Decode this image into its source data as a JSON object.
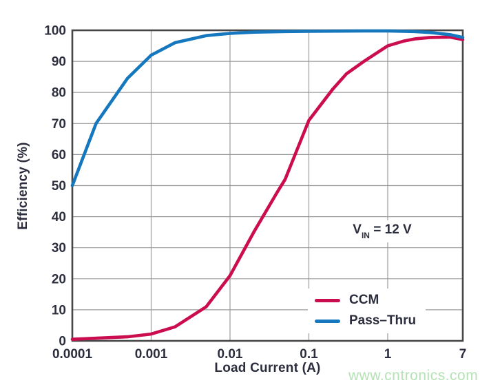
{
  "figure": {
    "xlabel": "Load Current (A)",
    "ylabel": "Efficiency (%)",
    "annotation": {
      "prefix": "V",
      "subscript": "IN",
      "rest": " = 12 V"
    },
    "legend": [
      {
        "label": "CCM",
        "color": "#CB0D4F"
      },
      {
        "label": "Pass–Thru",
        "color": "#1577BE"
      }
    ],
    "watermark": "www.cntronics.com",
    "colors": {
      "text": "#2C2E3E",
      "grid": "#9B9B9B",
      "frame": "#464646",
      "background": "#FFFFFF",
      "watermark": "#B5E2B5"
    }
  },
  "chart_data": {
    "type": "line",
    "title": "",
    "xlabel": "Load Current (A)",
    "ylabel": "Efficiency (%)",
    "x_scale": "log",
    "xlim": [
      0.0001,
      7
    ],
    "ylim": [
      0,
      100
    ],
    "x_tick_values": [
      0.0001,
      0.001,
      0.01,
      0.1,
      1,
      7
    ],
    "x_tick_labels": [
      "0.0001",
      "0.001",
      "0.01",
      "0.1",
      "1",
      "7"
    ],
    "y_tick_values": [
      0,
      10,
      20,
      30,
      40,
      50,
      60,
      70,
      80,
      90,
      100
    ],
    "grid": true,
    "legend_position": "inside lower right",
    "annotation": "VIN = 12 V",
    "series": [
      {
        "name": "CCM",
        "color": "#CB0D4F",
        "points": [
          [
            0.0001,
            0.5
          ],
          [
            0.0005,
            1.3
          ],
          [
            0.001,
            2.2
          ],
          [
            0.002,
            4.5
          ],
          [
            0.005,
            11
          ],
          [
            0.01,
            21
          ],
          [
            0.02,
            35
          ],
          [
            0.04,
            48
          ],
          [
            0.05,
            52
          ],
          [
            0.1,
            71
          ],
          [
            0.2,
            81
          ],
          [
            0.3,
            86
          ],
          [
            0.5,
            90
          ],
          [
            1,
            95
          ],
          [
            1.5,
            96.5
          ],
          [
            2,
            97.2
          ],
          [
            3,
            97.7
          ],
          [
            5,
            97.8
          ],
          [
            7,
            97
          ]
        ]
      },
      {
        "name": "Pass–Thru",
        "color": "#1577BE",
        "points": [
          [
            0.0001,
            50
          ],
          [
            0.0002,
            70
          ],
          [
            0.0005,
            84.5
          ],
          [
            0.001,
            92
          ],
          [
            0.002,
            96
          ],
          [
            0.005,
            98.3
          ],
          [
            0.01,
            99
          ],
          [
            0.02,
            99.4
          ],
          [
            0.05,
            99.6
          ],
          [
            0.1,
            99.7
          ],
          [
            0.5,
            99.8
          ],
          [
            1,
            99.8
          ],
          [
            2,
            99.6
          ],
          [
            3,
            99.3
          ],
          [
            5,
            98.6
          ],
          [
            7,
            97.7
          ]
        ]
      }
    ]
  }
}
